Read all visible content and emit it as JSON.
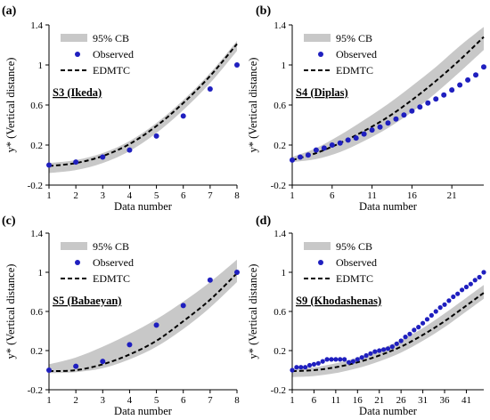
{
  "colors": {
    "band": "#c8c8c8",
    "observed": "#1f1fbf",
    "model": "#000000",
    "axis": "#000000"
  },
  "chart_data": [
    {
      "type": "line",
      "panel_label": "(a)",
      "annotation": "S3 (Ikeda)",
      "xlabel": "Data number",
      "ylabel": "y* (Vertical distance)",
      "xlim": [
        1,
        8
      ],
      "ylim": [
        -0.2,
        1.4
      ],
      "xticks": [
        1,
        2,
        3,
        4,
        5,
        6,
        7,
        8
      ],
      "yticks": [
        -0.2,
        0.2,
        0.6,
        1,
        1.4
      ],
      "legend": [
        "95% CB",
        "Observed",
        "EDMTC"
      ],
      "series": [
        {
          "name": "Observed",
          "x": [
            1,
            2,
            3,
            4,
            5,
            6,
            7,
            8
          ],
          "y": [
            0.0,
            0.03,
            0.08,
            0.15,
            0.29,
            0.49,
            0.76,
            1.0
          ]
        },
        {
          "name": "EDMTC",
          "x": [
            1,
            2,
            3,
            4,
            5,
            6,
            7,
            8
          ],
          "y": [
            -0.01,
            0.02,
            0.09,
            0.21,
            0.39,
            0.62,
            0.89,
            1.21
          ]
        },
        {
          "name": "95% CB",
          "x": [
            1,
            2,
            3,
            4,
            5,
            6,
            7,
            8
          ],
          "lower": [
            -0.08,
            -0.05,
            0.02,
            0.14,
            0.32,
            0.55,
            0.82,
            1.14
          ],
          "upper": [
            0.02,
            0.05,
            0.12,
            0.24,
            0.42,
            0.65,
            0.92,
            1.24
          ]
        }
      ]
    },
    {
      "type": "line",
      "panel_label": "(b)",
      "annotation": "S4 (Diplas)",
      "xlabel": "Data number",
      "ylabel": "y* (Vertical distance)",
      "xlim": [
        1,
        25
      ],
      "ylim": [
        -0.2,
        1.4
      ],
      "xticks": [
        1,
        6,
        11,
        16,
        21
      ],
      "yticks": [
        -0.2,
        0.2,
        0.6,
        1,
        1.4
      ],
      "legend": [
        "95% CB",
        "Observed",
        "EDMTC"
      ],
      "series": [
        {
          "name": "Observed",
          "x": [
            1,
            2,
            3,
            4,
            5,
            6,
            7,
            8,
            9,
            10,
            11,
            12,
            13,
            14,
            15,
            16,
            17,
            18,
            19,
            20,
            21,
            22,
            23,
            24,
            25
          ],
          "y": [
            0.05,
            0.08,
            0.1,
            0.15,
            0.17,
            0.2,
            0.22,
            0.25,
            0.27,
            0.31,
            0.35,
            0.38,
            0.42,
            0.46,
            0.5,
            0.54,
            0.58,
            0.62,
            0.66,
            0.7,
            0.75,
            0.8,
            0.85,
            0.9,
            0.98
          ]
        },
        {
          "name": "EDMTC",
          "x": [
            1,
            4,
            7,
            10,
            13,
            16,
            19,
            22,
            25
          ],
          "y": [
            0.05,
            0.12,
            0.22,
            0.34,
            0.48,
            0.65,
            0.84,
            1.05,
            1.28
          ]
        },
        {
          "name": "95% CB",
          "x": [
            1,
            4,
            7,
            10,
            13,
            16,
            19,
            22,
            25
          ],
          "lower": [
            0.03,
            0.06,
            0.13,
            0.24,
            0.37,
            0.53,
            0.72,
            0.93,
            1.15
          ],
          "upper": [
            0.08,
            0.17,
            0.3,
            0.45,
            0.61,
            0.79,
            0.98,
            1.19,
            1.38
          ]
        }
      ]
    },
    {
      "type": "line",
      "panel_label": "(c)",
      "annotation": "S5 (Babaeyan)",
      "xlabel": "Data number",
      "ylabel": "y* (Vertical distance)",
      "xlim": [
        1,
        8
      ],
      "ylim": [
        -0.2,
        1.4
      ],
      "xticks": [
        1,
        2,
        3,
        4,
        5,
        6,
        7,
        8
      ],
      "yticks": [
        -0.2,
        0.2,
        0.6,
        1,
        1.4
      ],
      "legend": [
        "95% CB",
        "Observed",
        "EDMTC"
      ],
      "series": [
        {
          "name": "Observed",
          "x": [
            1,
            2,
            3,
            4,
            5,
            6,
            7,
            8
          ],
          "y": [
            0.0,
            0.04,
            0.09,
            0.26,
            0.46,
            0.66,
            0.92,
            1.0
          ]
        },
        {
          "name": "EDMTC",
          "x": [
            1,
            2,
            3,
            4,
            5,
            6,
            7,
            8
          ],
          "y": [
            -0.01,
            0.0,
            0.06,
            0.16,
            0.3,
            0.5,
            0.72,
            0.99
          ]
        },
        {
          "name": "95% CB",
          "x": [
            1,
            2,
            3,
            4,
            5,
            6,
            7,
            8
          ],
          "lower": [
            -0.03,
            -0.02,
            0.02,
            0.11,
            0.24,
            0.42,
            0.64,
            0.9
          ],
          "upper": [
            0.06,
            0.13,
            0.24,
            0.37,
            0.52,
            0.7,
            0.9,
            1.13
          ]
        }
      ]
    },
    {
      "type": "line",
      "panel_label": "(d)",
      "annotation": "S9 (Khodashenas)",
      "xlabel": "Data number",
      "ylabel": "y* (Vertical distance)",
      "xlim": [
        1,
        45
      ],
      "ylim": [
        -0.2,
        1.4
      ],
      "xticks": [
        1,
        6,
        11,
        16,
        21,
        26,
        31,
        36,
        41
      ],
      "yticks": [
        -0.2,
        0.2,
        0.6,
        1,
        1.4
      ],
      "legend": [
        "95% CB",
        "Observed",
        "EDMTC"
      ],
      "series": [
        {
          "name": "Observed",
          "x": [
            1,
            2,
            3,
            4,
            5,
            6,
            7,
            8,
            9,
            10,
            11,
            12,
            13,
            14,
            15,
            16,
            17,
            18,
            19,
            20,
            21,
            22,
            23,
            24,
            25,
            26,
            27,
            28,
            29,
            30,
            31,
            32,
            33,
            34,
            35,
            36,
            37,
            38,
            39,
            40,
            41,
            42,
            43,
            44,
            45
          ],
          "y": [
            0.0,
            0.03,
            0.03,
            0.03,
            0.05,
            0.06,
            0.07,
            0.09,
            0.11,
            0.11,
            0.11,
            0.11,
            0.11,
            0.08,
            0.09,
            0.11,
            0.13,
            0.15,
            0.17,
            0.19,
            0.2,
            0.21,
            0.22,
            0.24,
            0.27,
            0.3,
            0.34,
            0.37,
            0.41,
            0.44,
            0.48,
            0.52,
            0.56,
            0.6,
            0.64,
            0.67,
            0.71,
            0.75,
            0.78,
            0.82,
            0.85,
            0.88,
            0.92,
            0.95,
            1.0
          ]
        },
        {
          "name": "EDMTC",
          "x": [
            1,
            6,
            11,
            16,
            21,
            26,
            31,
            36,
            41,
            45
          ],
          "y": [
            -0.01,
            0.0,
            0.03,
            0.08,
            0.15,
            0.24,
            0.36,
            0.5,
            0.66,
            0.79
          ]
        },
        {
          "name": "95% CB",
          "x": [
            1,
            6,
            11,
            16,
            21,
            26,
            31,
            36,
            41,
            45
          ],
          "lower": [
            -0.07,
            -0.06,
            -0.03,
            0.02,
            0.09,
            0.18,
            0.3,
            0.44,
            0.6,
            0.73
          ],
          "upper": [
            0.02,
            0.03,
            0.07,
            0.13,
            0.21,
            0.31,
            0.43,
            0.58,
            0.74,
            0.87
          ]
        }
      ]
    }
  ]
}
